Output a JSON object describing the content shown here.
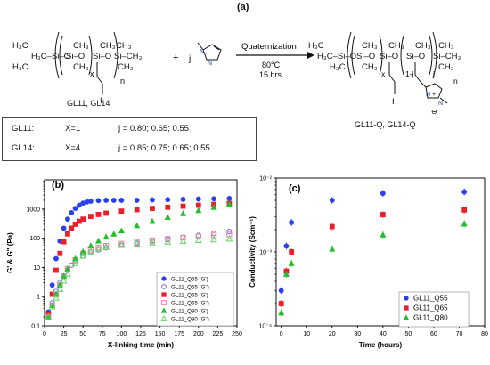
{
  "figure": {
    "panel_a_label": "(a)",
    "panel_b_label": "(b)",
    "panel_c_label": "(c)"
  },
  "reaction": {
    "reagent_coeff": "j",
    "reagent_name": "1-methylimidazole",
    "arrow_label": "Quaternization",
    "temperature": "80°C",
    "time": "15 hrs.",
    "reactant_caption": "GL11, GL14",
    "product_caption": "GL11-Q, GL14-Q",
    "reactant_subscripts": [
      "x",
      "n"
    ],
    "product_subscripts": [
      "x",
      "1-j",
      "j",
      "n"
    ],
    "iodide": "I",
    "product_charges": [
      "+",
      "⊖"
    ]
  },
  "definitions": [
    {
      "name": "GL11:",
      "x": "X=1",
      "j": "j = 0.80; 0.65; 0.55"
    },
    {
      "name": "GL14:",
      "x": "X=4",
      "j": "j = 0.85; 0.75; 0.65; 0.55"
    }
  ],
  "chart_data": [
    {
      "type": "scatter",
      "title": "",
      "xlabel": "X-linking time (min)",
      "ylabel": "G' & G'' (Pa)",
      "xlim": [
        0,
        250
      ],
      "ylim": [
        0.1,
        10000
      ],
      "yscale": "log",
      "xticks": [
        0,
        25,
        50,
        75,
        100,
        125,
        150,
        175,
        200,
        225,
        250
      ],
      "yticks": [
        0.1,
        1,
        10,
        100,
        1000
      ],
      "legend_position": "bottom-right",
      "series": [
        {
          "name": "GL11_Q55 (G')",
          "color": "#2a3ff0",
          "marker": "circle",
          "filled": true,
          "x": [
            5,
            10,
            15,
            20,
            25,
            30,
            35,
            40,
            45,
            50,
            55,
            60,
            70,
            80,
            90,
            100,
            120,
            140,
            160,
            180,
            200,
            220,
            240
          ],
          "y": [
            0.3,
            2.5,
            20,
            80,
            220,
            450,
            750,
            1050,
            1350,
            1600,
            1750,
            1850,
            1950,
            2000,
            2000,
            2000,
            2000,
            2050,
            2100,
            2150,
            2200,
            2250,
            2300
          ]
        },
        {
          "name": "GL11_Q55 (G'')",
          "color": "#6f6cf0",
          "marker": "circle",
          "filled": false,
          "x": [
            5,
            10,
            15,
            20,
            25,
            30,
            35,
            40,
            50,
            60,
            70,
            80,
            100,
            120,
            140,
            160,
            180,
            200,
            220,
            240
          ],
          "y": [
            0.2,
            0.6,
            1.5,
            3,
            5,
            8,
            12,
            16,
            25,
            33,
            40,
            47,
            58,
            68,
            78,
            90,
            105,
            125,
            145,
            170
          ]
        },
        {
          "name": "GL11_Q65 (G')",
          "color": "#e8202a",
          "marker": "square",
          "filled": true,
          "x": [
            5,
            10,
            15,
            20,
            25,
            30,
            35,
            40,
            45,
            50,
            60,
            70,
            80,
            100,
            120,
            140,
            160,
            180,
            200,
            220,
            240
          ],
          "y": [
            0.25,
            1.2,
            8,
            30,
            75,
            140,
            220,
            300,
            380,
            450,
            560,
            650,
            720,
            850,
            950,
            1050,
            1150,
            1250,
            1350,
            1450,
            1550
          ]
        },
        {
          "name": "GL11_Q65 (G'')",
          "color": "#f07fa8",
          "marker": "square",
          "filled": false,
          "x": [
            5,
            10,
            15,
            20,
            25,
            30,
            40,
            50,
            60,
            70,
            80,
            100,
            120,
            140,
            160,
            180,
            200,
            220,
            240
          ],
          "y": [
            0.2,
            0.5,
            1.2,
            2.5,
            5,
            9,
            18,
            30,
            40,
            48,
            55,
            65,
            75,
            85,
            95,
            105,
            115,
            125,
            135
          ]
        },
        {
          "name": "GL11_Q80 (G')",
          "color": "#1fbf2a",
          "marker": "triangle",
          "filled": true,
          "x": [
            5,
            10,
            15,
            20,
            25,
            30,
            40,
            50,
            60,
            70,
            80,
            90,
            100,
            120,
            140,
            160,
            180,
            200,
            220,
            240
          ],
          "y": [
            0.2,
            0.5,
            1.2,
            2.5,
            5,
            9,
            20,
            35,
            55,
            80,
            110,
            140,
            180,
            270,
            380,
            520,
            700,
            900,
            1150,
            1450
          ]
        },
        {
          "name": "GL11_Q80 (G'')",
          "color": "#5ed65a",
          "marker": "triangle",
          "filled": false,
          "x": [
            5,
            10,
            15,
            20,
            25,
            30,
            40,
            50,
            60,
            70,
            80,
            100,
            120,
            140,
            160,
            180,
            200,
            220,
            240
          ],
          "y": [
            0.2,
            0.45,
            0.9,
            1.8,
            3.5,
            6,
            14,
            25,
            36,
            44,
            50,
            58,
            64,
            70,
            75,
            80,
            85,
            90,
            95
          ]
        }
      ]
    },
    {
      "type": "scatter",
      "title": "",
      "xlabel": "Time (hours)",
      "ylabel": "Conductivity (Scm⁻¹)",
      "xlim": [
        -2,
        80
      ],
      "ylim": [
        0.0001,
        0.01
      ],
      "yscale": "log",
      "xticks": [
        0,
        10,
        20,
        30,
        40,
        50,
        60,
        70,
        80
      ],
      "yticks": [
        "10⁻⁴",
        "10⁻³",
        "10⁻²"
      ],
      "ytick_values": [
        0.0001,
        0.001,
        0.01
      ],
      "legend_position": "bottom-right",
      "series": [
        {
          "name": "GL11_Q55",
          "color": "#2a3ff0",
          "marker": "circle",
          "filled": true,
          "x": [
            0,
            2,
            4,
            20,
            40,
            72
          ],
          "y": [
            0.0003,
            0.0012,
            0.0025,
            0.005,
            0.0062,
            0.0065
          ]
        },
        {
          "name": "GL11_Q65",
          "color": "#e8202a",
          "marker": "square",
          "filled": true,
          "x": [
            0,
            2,
            4,
            20,
            40,
            72
          ],
          "y": [
            0.0002,
            0.00055,
            0.001,
            0.0022,
            0.0032,
            0.0037
          ]
        },
        {
          "name": "GL11_Q80",
          "color": "#1fbf2a",
          "marker": "triangle",
          "filled": true,
          "x": [
            0,
            2,
            4,
            20,
            40,
            72
          ],
          "y": [
            0.00015,
            0.0005,
            0.0007,
            0.0011,
            0.0017,
            0.0024
          ]
        }
      ]
    }
  ]
}
